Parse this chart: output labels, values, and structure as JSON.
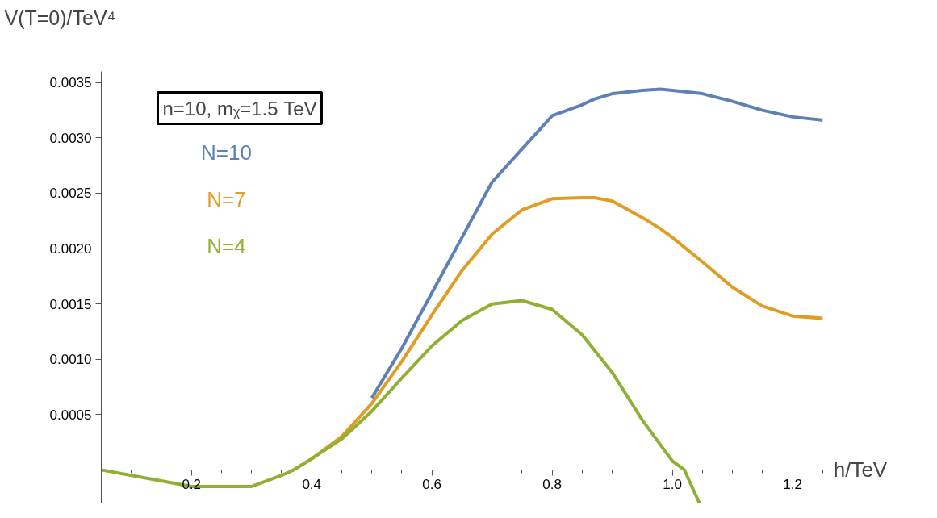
{
  "chart_data": {
    "type": "line",
    "xlabel": "h/TeV",
    "ylabel": "V(T=0)/TeV⁴",
    "annotations": [
      "n=10, mᵪ=1.5 TeV"
    ],
    "series": [
      {
        "name": "N=10",
        "color": "#5e81b5",
        "x": [
          0.5,
          0.55,
          0.6,
          0.65,
          0.7,
          0.75,
          0.8,
          0.85,
          0.87,
          0.9,
          0.95,
          0.98,
          1.0,
          1.05,
          1.1,
          1.15,
          1.2,
          1.25
        ],
        "values": [
          0.00065,
          0.0011,
          0.0016,
          0.0021,
          0.0026,
          0.0029,
          0.0032,
          0.0033,
          0.00335,
          0.0034,
          0.00343,
          0.00344,
          0.00343,
          0.0034,
          0.00333,
          0.00325,
          0.00319,
          0.00316
        ]
      },
      {
        "name": "N=7",
        "color": "#e19c24",
        "x": [
          0.37,
          0.4,
          0.45,
          0.5,
          0.55,
          0.6,
          0.65,
          0.7,
          0.75,
          0.8,
          0.85,
          0.87,
          0.9,
          0.95,
          0.98,
          1.0,
          1.05,
          1.1,
          1.15,
          1.2,
          1.25
        ],
        "values": [
          0,
          0.0001,
          0.0003,
          0.0006,
          0.00098,
          0.0014,
          0.0018,
          0.00213,
          0.00235,
          0.00245,
          0.00246,
          0.00246,
          0.00243,
          0.00228,
          0.00218,
          0.0021,
          0.00188,
          0.00165,
          0.00148,
          0.00139,
          0.00137
        ]
      },
      {
        "name": "N=4",
        "color": "#8fb032",
        "x": [
          0.05,
          0.1,
          0.15,
          0.2,
          0.25,
          0.3,
          0.35,
          0.37,
          0.4,
          0.45,
          0.5,
          0.55,
          0.6,
          0.65,
          0.7,
          0.75,
          0.8,
          0.85,
          0.9,
          0.95,
          1.0,
          1.02,
          1.045
        ],
        "values": [
          0,
          -5e-05,
          -0.0001,
          -0.00015,
          -0.00015,
          -0.00015,
          -5e-05,
          0,
          0.0001,
          0.00028,
          0.00053,
          0.00083,
          0.00112,
          0.00135,
          0.0015,
          0.00153,
          0.00145,
          0.00122,
          0.00088,
          0.00045,
          8e-05,
          0,
          -0.0003
        ]
      }
    ],
    "xlim": [
      0.05,
      1.25
    ],
    "ylim": [
      -0.0003,
      0.0036
    ],
    "xticks": [
      {
        "value": 0.05,
        "label": null
      },
      {
        "value": 0.1,
        "label": null
      },
      {
        "value": 0.15,
        "label": null
      },
      0.2,
      {
        "value": 0.25,
        "label": null
      },
      {
        "value": 0.3,
        "label": null
      },
      {
        "value": 0.35,
        "label": null
      },
      0.4,
      {
        "value": 0.45,
        "label": null
      },
      {
        "value": 0.5,
        "label": null
      },
      {
        "value": 0.55,
        "label": null
      },
      0.6,
      {
        "value": 0.65,
        "label": null
      },
      {
        "value": 0.7,
        "label": null
      },
      {
        "value": 0.75,
        "label": null
      },
      0.8,
      {
        "value": 0.85,
        "label": null
      },
      {
        "value": 0.9,
        "label": null
      },
      {
        "value": 0.95,
        "label": null
      },
      {
        "value": 1.0,
        "label": "1.0"
      },
      {
        "value": 1.05,
        "label": null
      },
      {
        "value": 1.1,
        "label": null
      },
      {
        "value": 1.15,
        "label": null
      },
      1.2,
      {
        "value": 1.25,
        "label": null
      }
    ],
    "yticks": [
      {
        "value": 0.0005,
        "label": "0.0005"
      },
      {
        "value": 0.001,
        "label": "0.0010"
      },
      {
        "value": 0.0015,
        "label": "0.0015"
      },
      {
        "value": 0.002,
        "label": "0.0020"
      },
      {
        "value": 0.0025,
        "label": "0.0025"
      },
      {
        "value": 0.003,
        "label": "0.0030"
      },
      {
        "value": 0.0035,
        "label": "0.0035"
      }
    ],
    "legend": "top left",
    "grid": false,
    "line_style": "solid",
    "marker": "none"
  }
}
